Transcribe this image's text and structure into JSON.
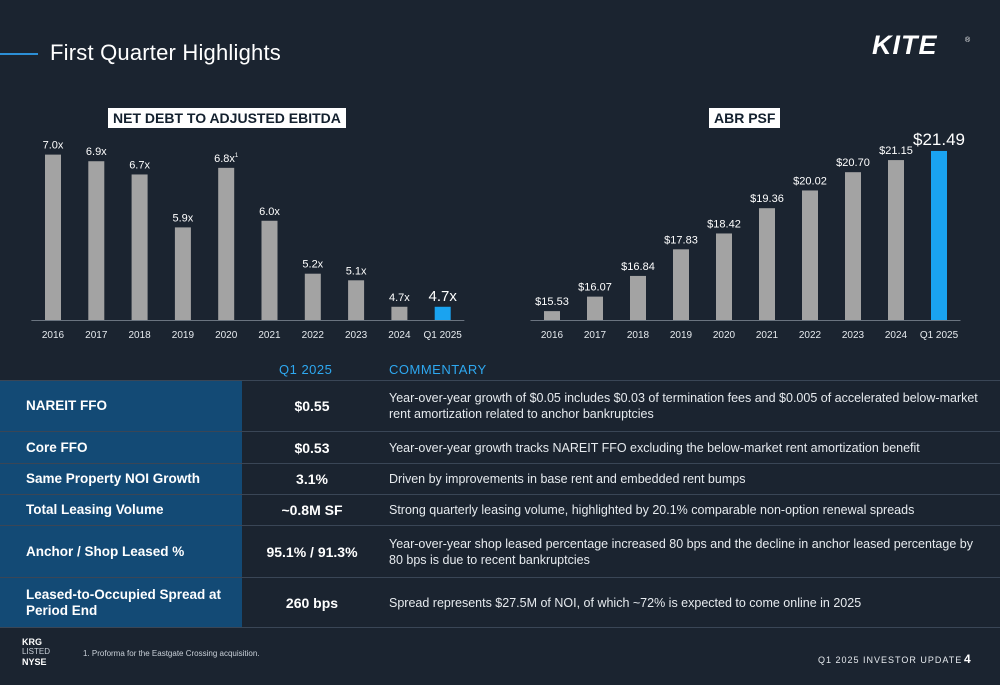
{
  "header": {
    "title": "First Quarter Highlights",
    "logo_text": "KITE",
    "logo_mark": "®"
  },
  "colors": {
    "background": "#1b2430",
    "bar_gray": "#a3a3a3",
    "bar_highlight": "#1aa3f0",
    "metric_bg": "#134a75",
    "accent": "#2ea8f0"
  },
  "chart_data": [
    {
      "type": "bar",
      "title": "NET DEBT TO ADJUSTED EBITDA",
      "categories": [
        "2016",
        "2017",
        "2018",
        "2019",
        "2020",
        "2021",
        "2022",
        "2023",
        "2024",
        "Q1 2025"
      ],
      "values": [
        7.0,
        6.9,
        6.7,
        5.9,
        6.8,
        6.0,
        5.2,
        5.1,
        4.7,
        4.7
      ],
      "data_labels": [
        "7.0x",
        "6.9x",
        "6.7x",
        "5.9x",
        "6.8x",
        "6.0x",
        "5.2x",
        "5.1x",
        "4.7x",
        "4.7x"
      ],
      "footnote_marker_index": 4,
      "footnote_marker": "1",
      "highlight_index": 9,
      "xlabel": "",
      "ylabel": "",
      "ylim": [
        4.5,
        7.1
      ],
      "grid": false,
      "legend": "none"
    },
    {
      "type": "bar",
      "title": "ABR PSF",
      "categories": [
        "2016",
        "2017",
        "2018",
        "2019",
        "2020",
        "2021",
        "2022",
        "2023",
        "2024",
        "Q1 2025"
      ],
      "values": [
        15.53,
        16.07,
        16.84,
        17.83,
        18.42,
        19.36,
        20.02,
        20.7,
        21.15,
        21.49
      ],
      "data_labels": [
        "$15.53",
        "$16.07",
        "$16.84",
        "$17.83",
        "$18.42",
        "$19.36",
        "$20.02",
        "$20.70",
        "$21.15",
        "$21.49"
      ],
      "highlight_index": 9,
      "xlabel": "",
      "ylabel": "",
      "ylim": [
        15.2,
        21.6
      ],
      "grid": false,
      "legend": "none"
    }
  ],
  "table": {
    "value_header": "Q1 2025",
    "commentary_header": "COMMENTARY",
    "rows": [
      {
        "metric": "NAREIT FFO",
        "value": "$0.55",
        "comment": "Year-over-year growth of $0.05 includes $0.03 of termination fees and $0.005 of accelerated below-market rent amortization related to anchor bankruptcies"
      },
      {
        "metric": "Core FFO",
        "value": "$0.53",
        "comment": "Year-over-year growth tracks NAREIT FFO excluding the below-market rent amortization benefit"
      },
      {
        "metric": "Same Property NOI Growth",
        "value": "3.1%",
        "comment": "Driven by improvements in base rent and embedded rent bumps"
      },
      {
        "metric": "Total Leasing Volume",
        "value": "~0.8M SF",
        "comment": "Strong quarterly leasing volume, highlighted by 20.1% comparable non-option renewal spreads"
      },
      {
        "metric": "Anchor / Shop Leased %",
        "value": "95.1% / 91.3%",
        "comment": "Year-over-year shop leased percentage increased 80 bps and the decline in anchor leased percentage by 80 bps is due to recent bankruptcies"
      },
      {
        "metric": "Leased-to-Occupied Spread at Period End",
        "value": "260 bps",
        "comment": "Spread represents $27.5M of NOI, of which ~72% is expected to come online in 2025"
      }
    ]
  },
  "footer": {
    "krg": "KRG",
    "listed": "LISTED",
    "nyse": "NYSE",
    "footnote": "1.   Proforma for the Eastgate Crossing acquisition.",
    "deck_label": "Q1 2025 INVESTOR UPDATE",
    "page_number": "4"
  }
}
